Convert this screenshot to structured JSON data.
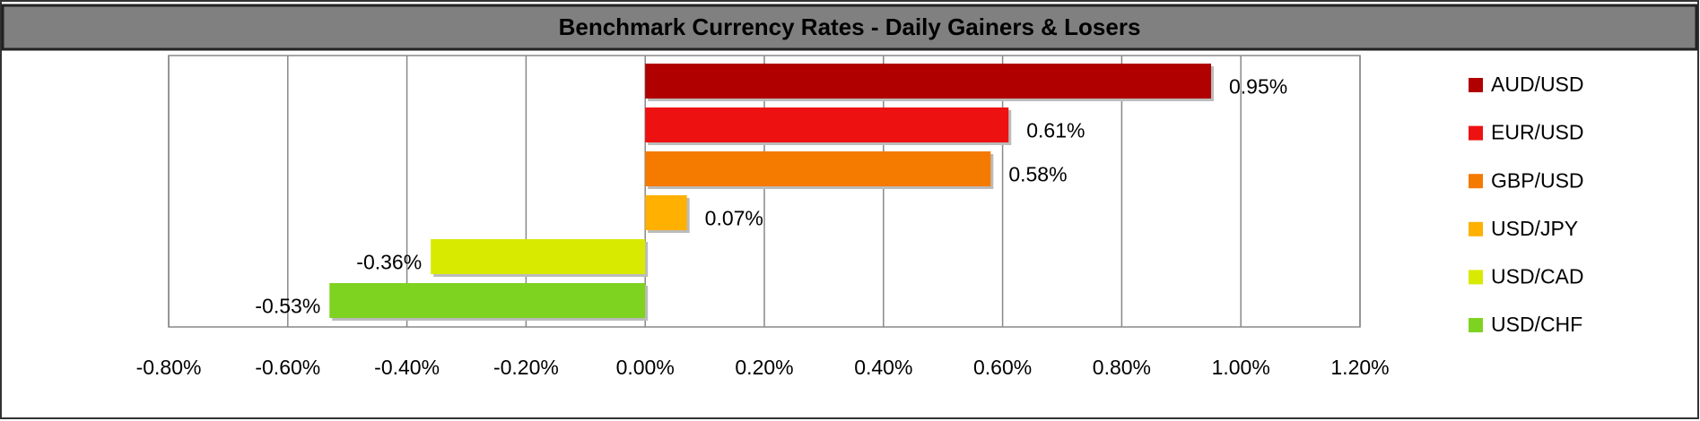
{
  "chart_data": {
    "type": "bar",
    "orientation": "horizontal",
    "title": "Benchmark Currency Rates - Daily Gainers & Losers",
    "series": [
      {
        "name": "AUD/USD",
        "color": "#b00000",
        "values": [
          0.95
        ],
        "value_labels": [
          "0.95%"
        ]
      },
      {
        "name": "EUR/USD",
        "color": "#ee1111",
        "values": [
          0.61
        ],
        "value_labels": [
          "0.61%"
        ]
      },
      {
        "name": "GBP/USD",
        "color": "#f47a00",
        "values": [
          0.58
        ],
        "value_labels": [
          "0.58%"
        ]
      },
      {
        "name": "USD/JPY",
        "color": "#ffb000",
        "values": [
          0.07
        ],
        "value_labels": [
          "0.07%"
        ]
      },
      {
        "name": "USD/CAD",
        "color": "#d8ea00",
        "values": [
          -0.36
        ],
        "value_labels": [
          "-0.36%"
        ]
      },
      {
        "name": "USD/CHF",
        "color": "#7ed321",
        "values": [
          -0.53
        ],
        "value_labels": [
          "-0.53%"
        ]
      }
    ],
    "xlim": [
      -0.8,
      1.2
    ],
    "xticks": [
      {
        "value": -0.8,
        "label": "-0.80%"
      },
      {
        "value": -0.6,
        "label": "-0.60%"
      },
      {
        "value": -0.4,
        "label": "-0.40%"
      },
      {
        "value": -0.2,
        "label": "-0.20%"
      },
      {
        "value": 0,
        "label": "0.00%"
      },
      {
        "value": 0.2,
        "label": "0.20%"
      },
      {
        "value": 0.4,
        "label": "0.40%"
      },
      {
        "value": 0.6,
        "label": "0.60%"
      },
      {
        "value": 0.8,
        "label": "0.80%"
      },
      {
        "value": 1.0,
        "label": "1.00%"
      },
      {
        "value": 1.2,
        "label": "1.20%"
      }
    ],
    "grid": true,
    "legend": "right"
  }
}
